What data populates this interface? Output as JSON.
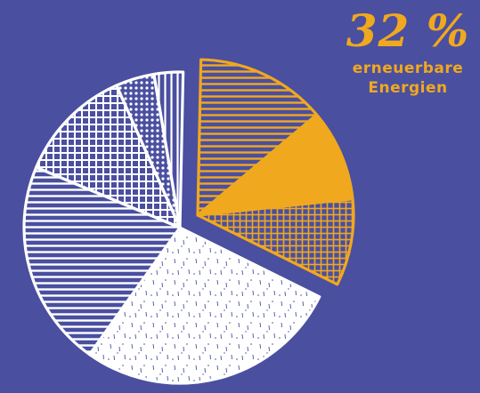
{
  "colors": {
    "background": "#4a4f9f",
    "renewable": "#f0a81f",
    "other": "#ffffff"
  },
  "callout": {
    "value": "32 %",
    "label_line1": "erneuerbare",
    "label_line2": "Energien"
  },
  "chart_data": {
    "type": "pie",
    "exploded_group": "renewable",
    "slices": [
      {
        "group": "renewable",
        "value": 13.5,
        "pattern": "horizontal-hatch"
      },
      {
        "group": "renewable",
        "value": 9.5,
        "pattern": "solid"
      },
      {
        "group": "renewable",
        "value": 9.0,
        "pattern": "dots"
      },
      {
        "group": "other",
        "value": 27.5,
        "pattern": "speckle"
      },
      {
        "group": "other",
        "value": 21.5,
        "pattern": "horizontal-hatch"
      },
      {
        "group": "other",
        "value": 12.0,
        "pattern": "crosshatch"
      },
      {
        "group": "other",
        "value": 4.0,
        "pattern": "dots"
      },
      {
        "group": "other",
        "value": 3.0,
        "pattern": "vertical-hatch"
      }
    ]
  }
}
